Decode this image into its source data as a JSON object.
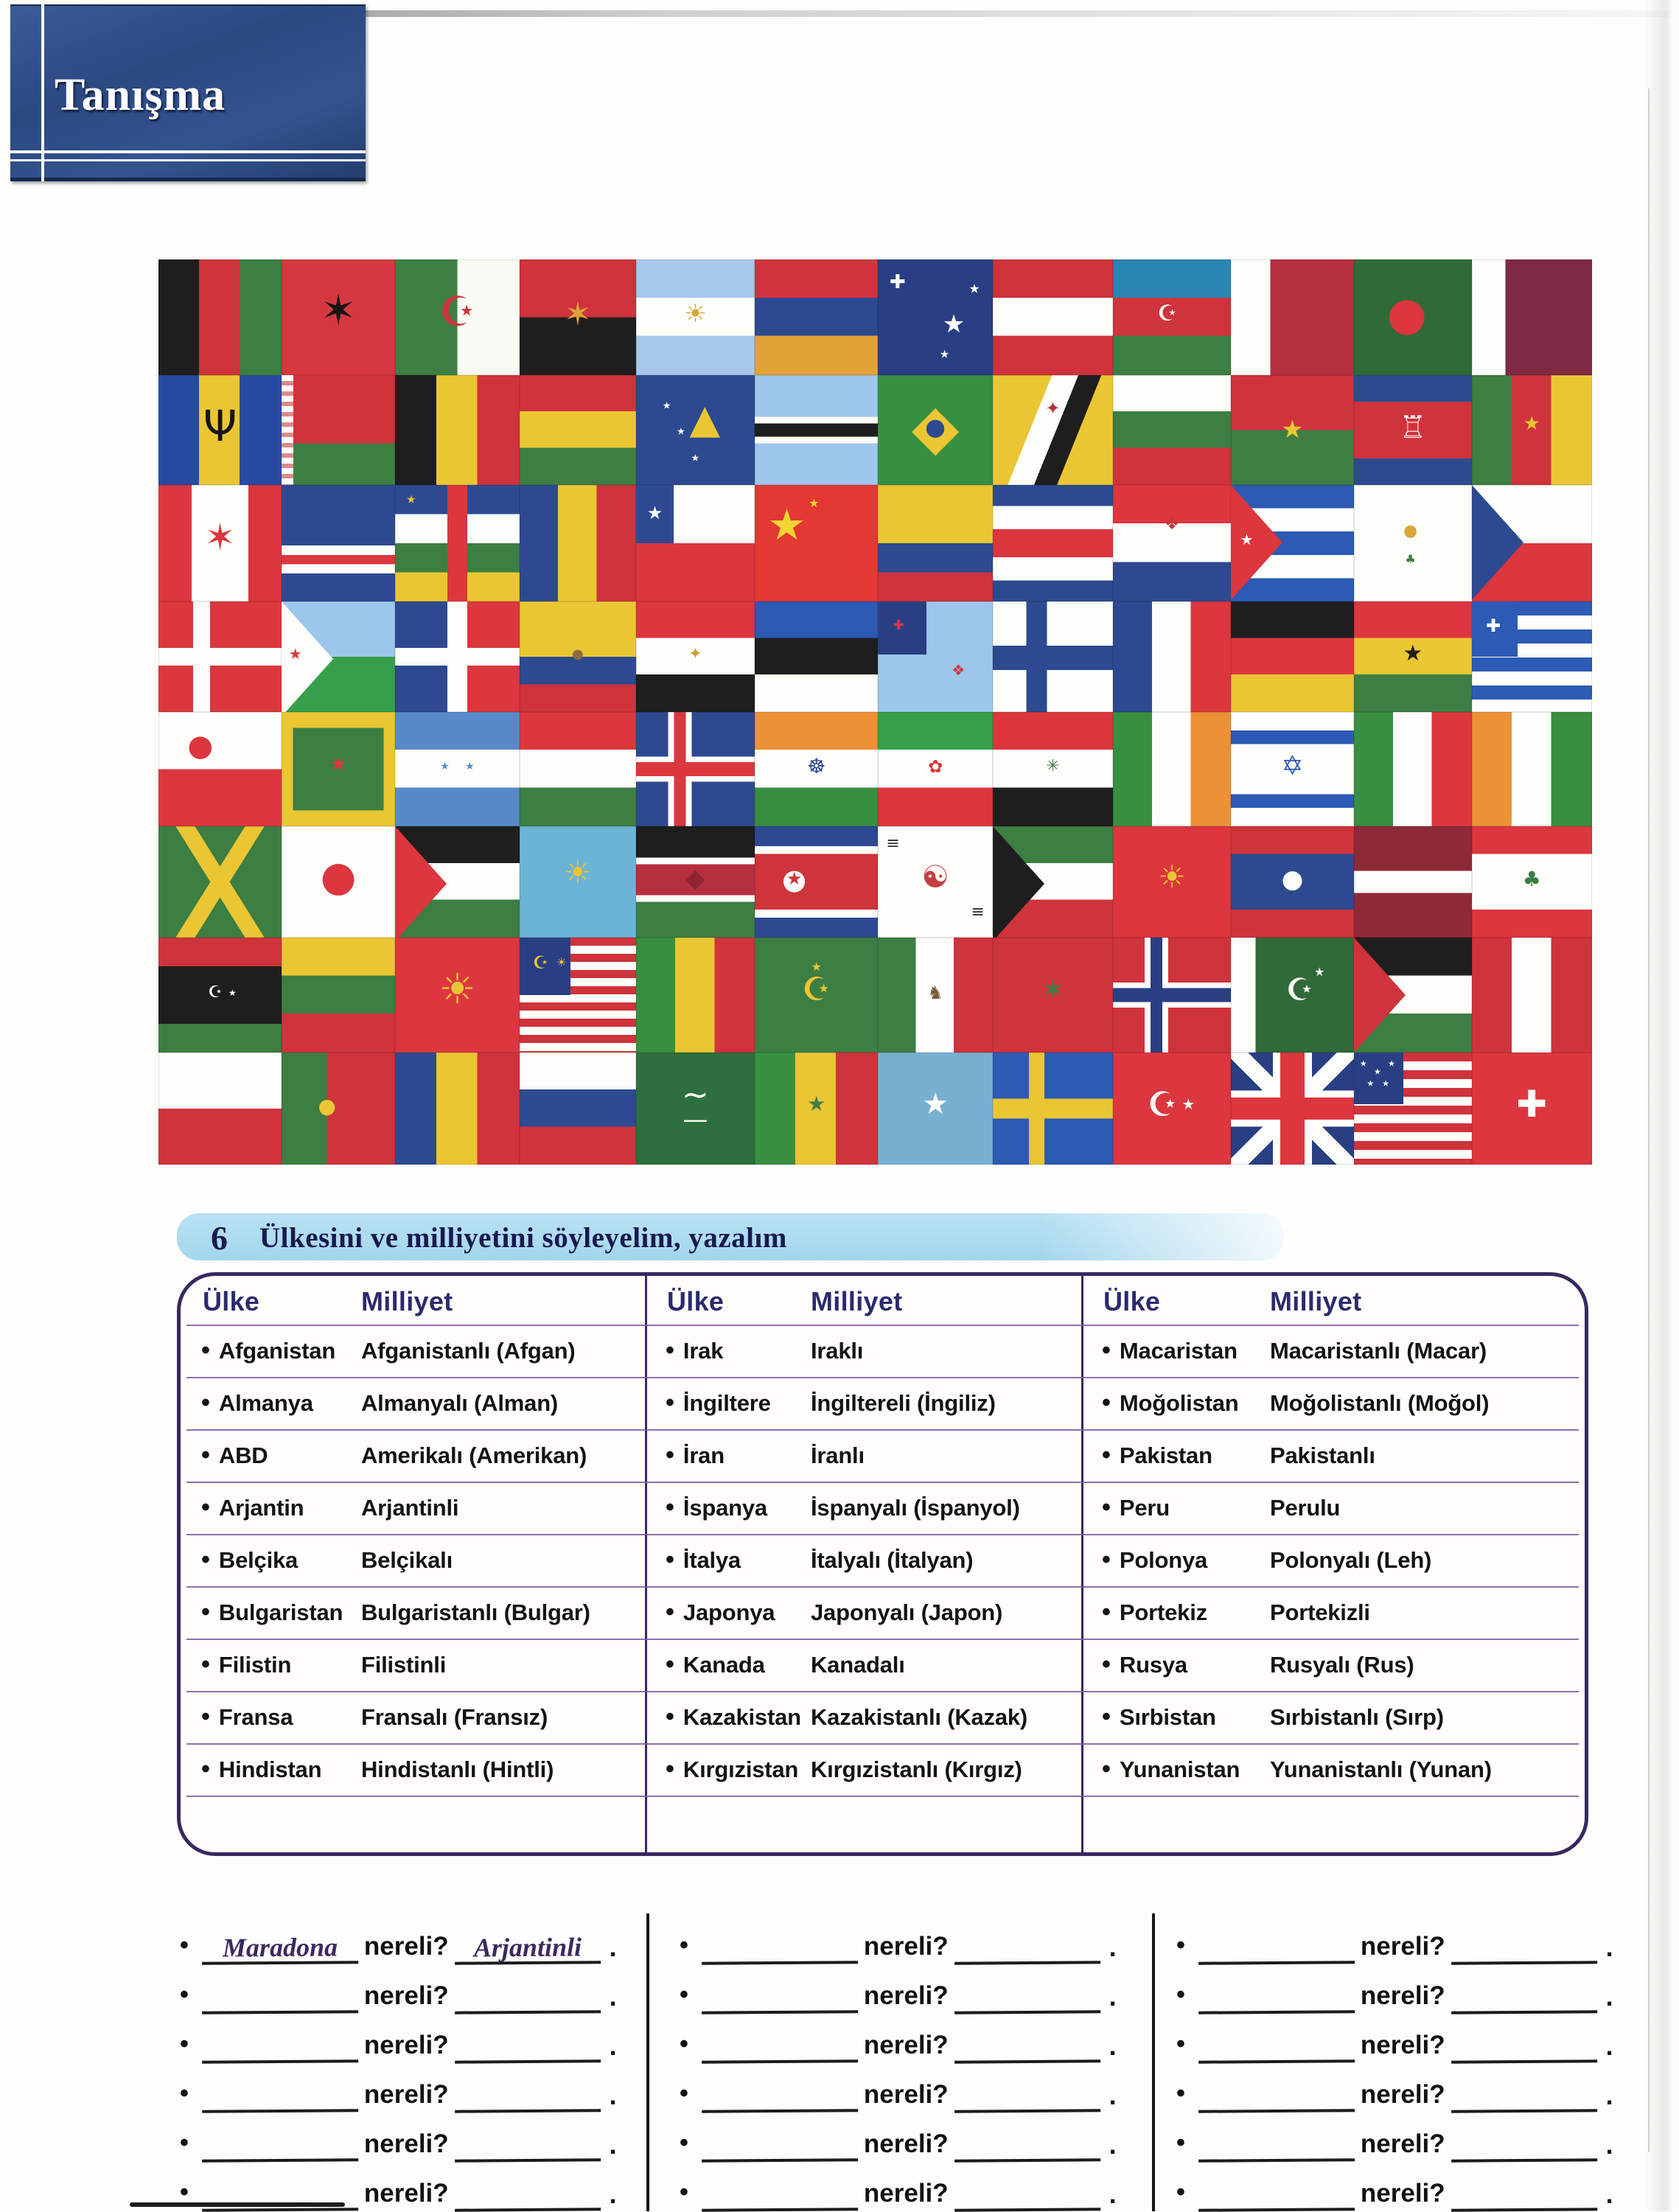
{
  "header": {
    "title": "Tanışma"
  },
  "section": {
    "number": "6",
    "title": "Ülkesini ve milliyetini söyleyelim, yazalım"
  },
  "table": {
    "col_headers": {
      "country": "Ülke",
      "nationality": "Milliyet"
    },
    "groups": [
      {
        "rows": [
          {
            "country": "Afganistan",
            "nationality": "Afganistanlı (Afgan)"
          },
          {
            "country": "Almanya",
            "nationality": "Almanyalı (Alman)"
          },
          {
            "country": "ABD",
            "nationality": "Amerikalı (Amerikan)"
          },
          {
            "country": "Arjantin",
            "nationality": "Arjantinli"
          },
          {
            "country": "Belçika",
            "nationality": "Belçikalı"
          },
          {
            "country": "Bulgaristan",
            "nationality": "Bulgaristanlı (Bulgar)"
          },
          {
            "country": "Filistin",
            "nationality": "Filistinli"
          },
          {
            "country": "Fransa",
            "nationality": "Fransalı (Fransız)"
          },
          {
            "country": "Hindistan",
            "nationality": "Hindistanlı (Hintli)"
          }
        ]
      },
      {
        "rows": [
          {
            "country": "Irak",
            "nationality": "Iraklı"
          },
          {
            "country": "İngiltere",
            "nationality": "İngiltereli (İngiliz)"
          },
          {
            "country": "İran",
            "nationality": "İranlı"
          },
          {
            "country": "İspanya",
            "nationality": "İspanyalı (İspanyol)"
          },
          {
            "country": "İtalya",
            "nationality": "İtalyalı (İtalyan)"
          },
          {
            "country": "Japonya",
            "nationality": "Japonyalı (Japon)"
          },
          {
            "country": "Kanada",
            "nationality": "Kanadalı"
          },
          {
            "country": "Kazakistan",
            "nationality": "Kazakistanlı (Kazak)"
          },
          {
            "country": "Kırgızistan",
            "nationality": "Kırgızistanlı (Kırgız)"
          }
        ]
      },
      {
        "rows": [
          {
            "country": "Macaristan",
            "nationality": "Macaristanlı (Macar)"
          },
          {
            "country": "Moğolistan",
            "nationality": "Moğolistanlı (Moğol)"
          },
          {
            "country": "Pakistan",
            "nationality": "Pakistanlı"
          },
          {
            "country": "Peru",
            "nationality": "Perulu"
          },
          {
            "country": "Polonya",
            "nationality": "Polonyalı (Leh)"
          },
          {
            "country": "Portekiz",
            "nationality": "Portekizli"
          },
          {
            "country": "Rusya",
            "nationality": "Rusyalı (Rus)"
          },
          {
            "country": "Sırbistan",
            "nationality": "Sırbistanlı (Sırp)"
          },
          {
            "country": "Yunanistan",
            "nationality": "Yunanistanlı (Yunan)"
          }
        ]
      }
    ]
  },
  "exercise": {
    "question_word": "nereli?",
    "period": ".",
    "columns": [
      {
        "rows": [
          {
            "country": "Maradona",
            "nationality": "Arjantinli"
          },
          {
            "country": "",
            "nationality": ""
          },
          {
            "country": "",
            "nationality": ""
          },
          {
            "country": "",
            "nationality": ""
          },
          {
            "country": "",
            "nationality": ""
          },
          {
            "country": "",
            "nationality": ""
          }
        ]
      },
      {
        "rows": [
          {
            "country": "",
            "nationality": ""
          },
          {
            "country": "",
            "nationality": ""
          },
          {
            "country": "",
            "nationality": ""
          },
          {
            "country": "",
            "nationality": ""
          },
          {
            "country": "",
            "nationality": ""
          },
          {
            "country": "",
            "nationality": ""
          }
        ]
      },
      {
        "rows": [
          {
            "country": "",
            "nationality": ""
          },
          {
            "country": "",
            "nationality": ""
          },
          {
            "country": "",
            "nationality": ""
          },
          {
            "country": "",
            "nationality": ""
          },
          {
            "country": "",
            "nationality": ""
          },
          {
            "country": "",
            "nationality": ""
          }
        ]
      }
    ]
  },
  "flags": {
    "grid": [
      [
        "afghanistan",
        "albania",
        "algeria",
        "angola",
        "argentina",
        "armenia",
        "australia",
        "austria",
        "azerbaijan",
        "bahrain",
        "bangladesh",
        "qatar"
      ],
      [
        "barbados",
        "belarus",
        "belgium",
        "bolivia",
        "bosnia",
        "botswana",
        "brazil",
        "brunei",
        "bulgaria",
        "burkina-faso",
        "cambodia",
        "cameroon"
      ],
      [
        "canada",
        "cape-verde",
        "central-african-republic",
        "chad",
        "chile",
        "china",
        "colombia",
        "costa-rica",
        "croatia",
        "cuba",
        "cyprus",
        "czechia"
      ],
      [
        "denmark",
        "djibouti",
        "dominican-republic",
        "ecuador",
        "egypt",
        "estonia",
        "fiji",
        "finland",
        "france",
        "germany",
        "ghana",
        "greece"
      ],
      [
        "greenland",
        "grenada",
        "honduras",
        "hungary",
        "iceland",
        "india",
        "iran",
        "iraq",
        "ireland",
        "israel",
        "italy",
        "ivory-coast"
      ],
      [
        "jamaica",
        "japan",
        "jordan",
        "kazakhstan",
        "kenya",
        "north-korea",
        "south-korea",
        "kuwait",
        "kyrgyzstan",
        "laos",
        "latvia",
        "lebanon"
      ],
      [
        "libya",
        "lithuania",
        "north-macedonia",
        "malaysia",
        "mali",
        "mauritania",
        "mexico",
        "morocco",
        "norway",
        "pakistan",
        "palestine",
        "peru"
      ],
      [
        "poland",
        "portugal",
        "romania",
        "russia",
        "saudi-arabia",
        "senegal",
        "somalia",
        "sweden",
        "turkey",
        "united-kingdom",
        "united-states",
        "switzerland"
      ]
    ]
  },
  "palette": {
    "accent_bar_blue": "#a3d6ec",
    "heading_navy": "#191950",
    "table_border_purple": "#37295f",
    "row_line_purple": "#7a58a0",
    "ink_black": "#141414",
    "handwriting_purple": "#3b2a60",
    "unit_box_blue": "#2b4981"
  }
}
